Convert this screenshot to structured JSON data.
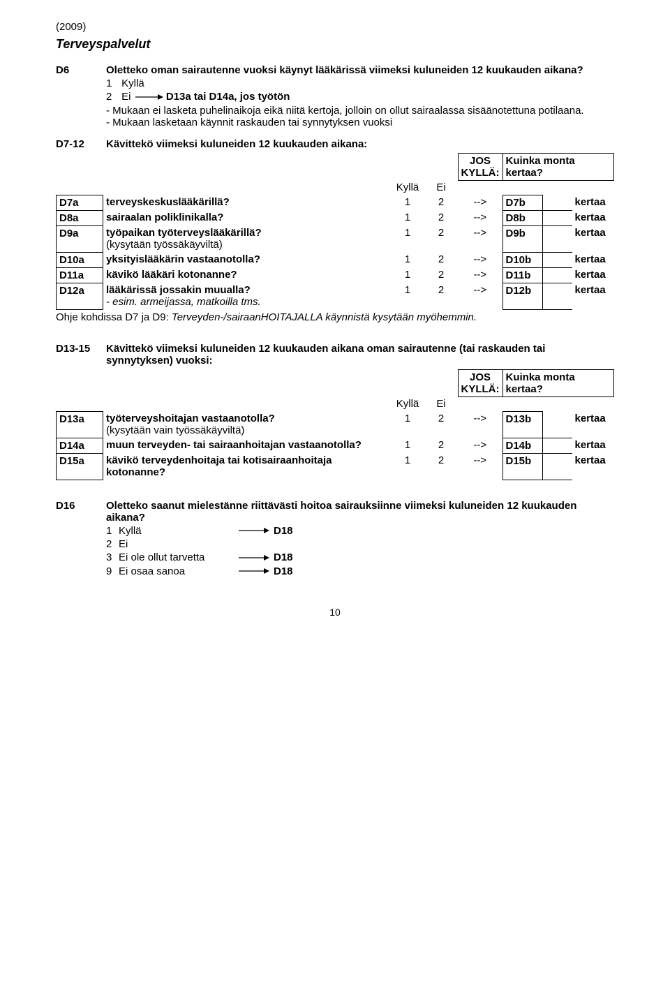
{
  "year": "(2009)",
  "section_title": "Terveyspalvelut",
  "d6": {
    "code": "D6",
    "title": "Oletteko oman sairautenne vuoksi käynyt lääkärissä viimeksi kuluneiden 12 kuukauden aikana?",
    "opt1_n": "1",
    "opt1_t": "Kyllä",
    "opt2_n": "2",
    "opt2_t": "Ei",
    "opt2_goto": "D13a tai D14a, jos työtön",
    "note1": "- Mukaan ei lasketa puhelinaikoja eikä niitä kertoja, jolloin on ollut sairaalassa sisäänotettuna potilaana.",
    "note2": "- Mukaan lasketaan käynnit raskauden tai  synnytyksen vuoksi"
  },
  "d7_12": {
    "code": "D7-12",
    "title": "Kävittekö viimeksi kuluneiden 12 kuukauden aikana:",
    "hdr_jos": "JOS KYLLÄ:",
    "hdr_kuinka": "Kuinka monta kertaa?",
    "hdr_kylla": "Kyllä",
    "hdr_ei": "Ei",
    "rows": [
      {
        "code": "D7a",
        "label": "terveyskeskuslääkärillä?",
        "n1": "1",
        "n2": "2",
        "arrow": "-->",
        "tgt": "D7b",
        "unit": "kertaa"
      },
      {
        "code": "D8a",
        "label": "sairaalan poliklinikalla?",
        "n1": "1",
        "n2": "2",
        "arrow": "-->",
        "tgt": "D8b",
        "unit": "kertaa"
      },
      {
        "code": "D9a",
        "label": "työpaikan työterveyslääkärillä?",
        "sub": "(kysytään työssäkäyviltä)",
        "n1": "1",
        "n2": "2",
        "arrow": "-->",
        "tgt": "D9b",
        "unit": "kertaa"
      },
      {
        "code": "D10a",
        "label": "yksityislääkärin vastaanotolla?",
        "n1": "1",
        "n2": "2",
        "arrow": "-->",
        "tgt": "D10b",
        "unit": "kertaa"
      },
      {
        "code": "D11a",
        "label": "kävikö lääkäri kotonanne?",
        "n1": "1",
        "n2": "2",
        "arrow": "-->",
        "tgt": "D11b",
        "unit": "kertaa"
      },
      {
        "code": "D12a",
        "label": "lääkärissä jossakin muualla?",
        "sub": "- esim. armeijassa, matkoilla tms.",
        "n1": "1",
        "n2": "2",
        "arrow": "-->",
        "tgt": "D12b",
        "unit": "kertaa"
      }
    ],
    "footnote_a": "Ohje kohdissa D7 ja D9: ",
    "footnote_b": "Terveyden-/sairaanHOITAJALLA käynnistä kysytään myöhemmin."
  },
  "d13_15": {
    "code": "D13-15",
    "title": "Kävittekö viimeksi kuluneiden 12 kuukauden aikana oman sairautenne (tai raskauden tai synnytyksen) vuoksi:",
    "hdr_jos": "JOS KYLLÄ:",
    "hdr_kuinka": "Kuinka monta kertaa?",
    "hdr_kylla": "Kyllä",
    "hdr_ei": "Ei",
    "rows": [
      {
        "code": "D13a",
        "label": "työterveyshoitajan vastaanotolla?",
        "sub": "(kysytään vain työssäkäyviltä)",
        "n1": "1",
        "n2": "2",
        "arrow": "-->",
        "tgt": "D13b",
        "unit": "kertaa"
      },
      {
        "code": "D14a",
        "label": "muun terveyden- tai sairaanhoitajan vastaanotolla?",
        "n1": "1",
        "n2": "2",
        "arrow": "-->",
        "tgt": "D14b",
        "unit": "kertaa"
      },
      {
        "code": "D15a",
        "label": "kävikö terveydenhoitaja tai kotisairaanhoitaja kotonanne?",
        "n1": "1",
        "n2": "2",
        "arrow": "-->",
        "tgt": "D15b",
        "unit": "kertaa"
      }
    ]
  },
  "d16": {
    "code": "D16",
    "title": "Oletteko saanut mielestänne riittävästi hoitoa sairauksiinne viimeksi kuluneiden 12 kuukauden aikana?",
    "opts": [
      {
        "n": "1",
        "t": "Kyllä",
        "goto": "D18"
      },
      {
        "n": "2",
        "t": "Ei",
        "goto": ""
      },
      {
        "n": "3",
        "t": "Ei ole ollut tarvetta",
        "goto": "D18"
      },
      {
        "n": "9",
        "t": "Ei osaa sanoa",
        "goto": "D18"
      }
    ]
  },
  "pagenum": "10"
}
